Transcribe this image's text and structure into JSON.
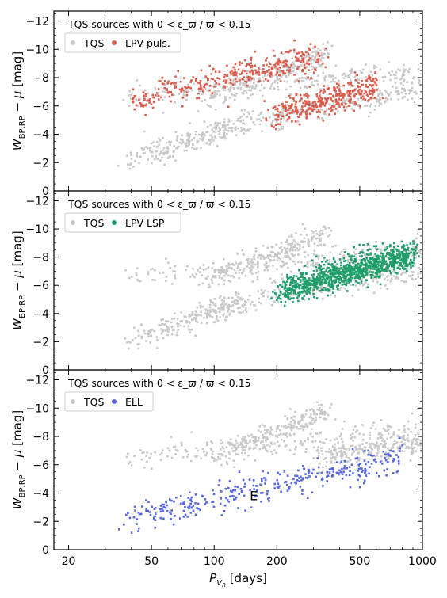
{
  "chart_data": [
    {
      "type": "scatter",
      "title": "TQS sources with 0 < ε_ϖ / ϖ < 0.15",
      "xlabel": "",
      "ylabel": "W_BP,RP − μ [mag]",
      "xscale": "log",
      "xlim": [
        17,
        1000
      ],
      "ylim": [
        0,
        -12.7
      ],
      "yticks": [
        0,
        -2,
        -4,
        -6,
        -8,
        -10,
        -12
      ],
      "ytick_labels": [
        "0",
        "−2",
        "−4",
        "−6",
        "−8",
        "−10",
        "−12"
      ],
      "legend": {
        "placement": "top-left",
        "entries": [
          "TQS",
          "LPV puls."
        ]
      },
      "grid": false,
      "series": [
        {
          "name": "TQS",
          "color": "#c8c8c8",
          "sequences": [
            {
              "x_range": [
                37,
                140
              ],
              "y_at_start": -2.0,
              "y_at_end": -4.8
            },
            {
              "x_range": [
                100,
                1000
              ],
              "y_at_start": -4.5,
              "y_at_end": -7.2
            },
            {
              "x_range": [
                37,
                1000
              ],
              "y_at_start": -6.5,
              "y_at_end": -8.5
            },
            {
              "x_range": [
                90,
                350
              ],
              "y_at_start": -6.3,
              "y_at_end": -9.8
            }
          ]
        },
        {
          "name": "LPV puls.",
          "color": "#de5a4a",
          "sequences": [
            {
              "x_range": [
                37,
                330
              ],
              "y_at_start": -6.3,
              "y_at_end": -9.5
            },
            {
              "x_range": [
                180,
                600
              ],
              "y_at_start": -5.3,
              "y_at_end": -7.3
            }
          ]
        }
      ]
    },
    {
      "type": "scatter",
      "title": "TQS sources with 0 < ε_ϖ / ϖ < 0.15",
      "xlabel": "",
      "ylabel": "W_BP,RP − μ [mag]",
      "xscale": "log",
      "xlim": [
        17,
        1000
      ],
      "ylim": [
        0,
        -12.7
      ],
      "yticks": [
        0,
        -2,
        -4,
        -6,
        -8,
        -10,
        -12
      ],
      "ytick_labels": [
        "0",
        "−2",
        "−4",
        "−6",
        "−8",
        "−10",
        "−12"
      ],
      "legend": {
        "placement": "top-left",
        "entries": [
          "TQS",
          "LPV LSP"
        ]
      },
      "grid": false,
      "series": [
        {
          "name": "TQS",
          "color": "#c8c8c8",
          "sequences": [
            {
              "x_range": [
                37,
                140
              ],
              "y_at_start": -2.0,
              "y_at_end": -4.8
            },
            {
              "x_range": [
                100,
                1000
              ],
              "y_at_start": -4.5,
              "y_at_end": -7.2
            },
            {
              "x_range": [
                37,
                1000
              ],
              "y_at_start": -6.5,
              "y_at_end": -8.5
            },
            {
              "x_range": [
                90,
                350
              ],
              "y_at_start": -6.3,
              "y_at_end": -9.8
            }
          ]
        },
        {
          "name": "LPV LSP",
          "color": "#1f9e6a",
          "sequences": [
            {
              "x_range": [
                200,
                900
              ],
              "y_at_start": -5.5,
              "y_at_end": -8.2
            }
          ]
        }
      ]
    },
    {
      "type": "scatter",
      "title": "TQS sources with 0 < ε_ϖ / ϖ < 0.15",
      "xlabel": "P_V_R [days]",
      "ylabel": "W_BP,RP − μ [mag]",
      "xscale": "log",
      "xlim": [
        17,
        1000
      ],
      "ylim": [
        0,
        -12.7
      ],
      "xticks": [
        20,
        50,
        100,
        200,
        500,
        1000
      ],
      "xtick_labels": [
        "20",
        "50",
        "100",
        "200",
        "500",
        "1000"
      ],
      "yticks": [
        0,
        -2,
        -4,
        -6,
        -8,
        -10,
        -12
      ],
      "ytick_labels": [
        "0",
        "−2",
        "−4",
        "−6",
        "−8",
        "−10",
        "−12"
      ],
      "legend": {
        "placement": "top-left",
        "entries": [
          "TQS",
          "ELL"
        ]
      },
      "annotations": [
        {
          "text": "E",
          "x": 155,
          "y": -3.5
        }
      ],
      "grid": false,
      "series": [
        {
          "name": "TQS",
          "color": "#c8c8c8",
          "sequences": [
            {
              "x_range": [
                37,
                1000
              ],
              "y_at_start": -6.5,
              "y_at_end": -8.5
            },
            {
              "x_range": [
                90,
                350
              ],
              "y_at_start": -6.3,
              "y_at_end": -9.8
            },
            {
              "x_range": [
                300,
                1000
              ],
              "y_at_start": -6.5,
              "y_at_end": -7.5
            }
          ]
        },
        {
          "name": "ELL",
          "color": "#5566e6",
          "sequences": [
            {
              "x_range": [
                37,
                800
              ],
              "y_at_start": -2.0,
              "y_at_end": -6.6
            }
          ]
        }
      ]
    }
  ]
}
